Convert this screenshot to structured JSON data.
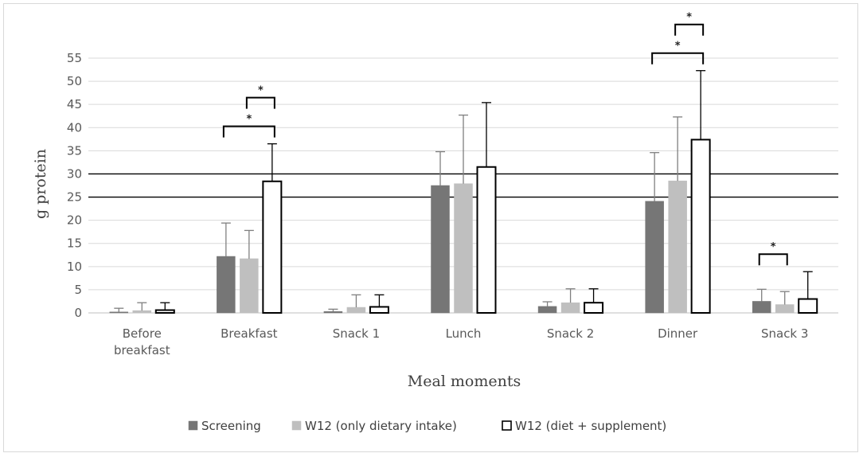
{
  "chart_data": {
    "type": "bar",
    "title": "",
    "xlabel": "Meal moments",
    "ylabel": "g protein",
    "ylim": [
      0,
      55
    ],
    "yticks": [
      0,
      5,
      10,
      15,
      20,
      25,
      30,
      35,
      40,
      45,
      50,
      55
    ],
    "grid": true,
    "categories": [
      [
        "Before",
        "breakfast"
      ],
      [
        "Breakfast"
      ],
      [
        "Snack 1"
      ],
      [
        "Lunch"
      ],
      [
        "Snack 2"
      ],
      [
        "Dinner"
      ],
      [
        "Snack 3"
      ]
    ],
    "series": [
      {
        "name": "Screening",
        "color": "#767676",
        "fill": "#767676",
        "values": [
          0.2,
          12.2,
          0.3,
          27.5,
          1.4,
          24.1,
          2.5
        ],
        "errors": [
          0.8,
          7.2,
          0.5,
          7.3,
          1.0,
          10.5,
          2.6
        ]
      },
      {
        "name": "W12 (only dietary intake)",
        "color": "#bfbfbf",
        "fill": "#bfbfbf",
        "values": [
          0.5,
          11.7,
          1.2,
          27.9,
          2.2,
          28.5,
          1.8
        ],
        "errors": [
          1.7,
          6.1,
          2.7,
          14.8,
          3.0,
          13.8,
          2.8
        ]
      },
      {
        "name": "W12 (diet + supplement)",
        "color": "#000000",
        "fill": "#ffffff",
        "values": [
          0.6,
          28.4,
          1.3,
          31.5,
          2.2,
          37.4,
          3.0
        ],
        "errors": [
          1.6,
          8.1,
          2.6,
          13.9,
          3.0,
          14.9,
          5.9
        ]
      }
    ],
    "reference_lines": [
      25,
      30
    ],
    "significance": [
      {
        "category": 1,
        "from_series": 1,
        "to_series": 2,
        "label": "*",
        "level": 1
      },
      {
        "category": 1,
        "from_series": 0,
        "to_series": 2,
        "label": "*",
        "level": 0
      },
      {
        "category": 5,
        "from_series": 1,
        "to_series": 2,
        "label": "*",
        "level": 1
      },
      {
        "category": 5,
        "from_series": 0,
        "to_series": 2,
        "label": "*",
        "level": 0
      },
      {
        "category": 6,
        "from_series": 0,
        "to_series": 1,
        "label": "*",
        "level": 0
      }
    ],
    "legend_position": "bottom"
  }
}
